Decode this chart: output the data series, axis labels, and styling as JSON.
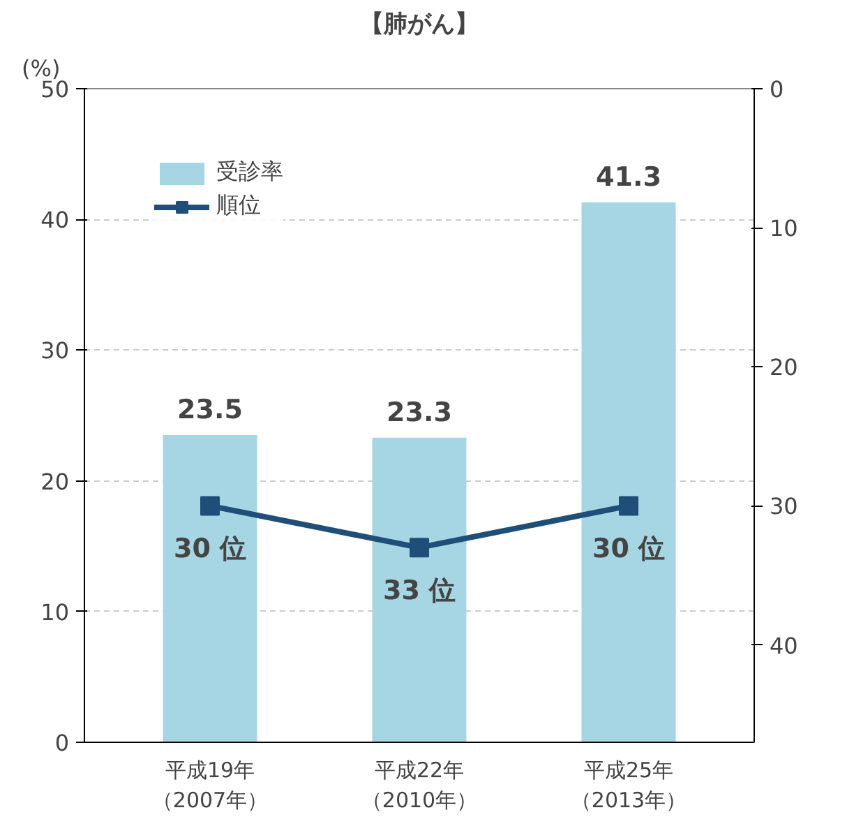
{
  "chart_data": {
    "type": "bar",
    "title": "【肺がん】",
    "ylabel": "(%)",
    "categories": [
      "平成19年（2007年）",
      "平成22年（2010年）",
      "平成25年（2013年）"
    ],
    "series": [
      {
        "name": "受診率",
        "color": "#a6d6e3",
        "values": [
          23.5,
          23.3,
          41.3
        ],
        "value_labels": [
          "23.5",
          "23.3",
          "41.3"
        ]
      },
      {
        "name": "順位",
        "type": "line",
        "axis": "y2",
        "color": "#1f4e79",
        "marker": "square",
        "values": [
          30,
          33,
          30
        ],
        "value_labels": [
          "30 位",
          "33 位",
          "30 位"
        ]
      }
    ],
    "ylim": [
      0,
      50
    ],
    "yticks": [
      0,
      10,
      20,
      30,
      40,
      50
    ],
    "y2lim": [
      47,
      0
    ],
    "y2ticks": [
      0,
      10,
      20,
      30,
      40
    ],
    "grid": "y",
    "legend": "top left"
  }
}
